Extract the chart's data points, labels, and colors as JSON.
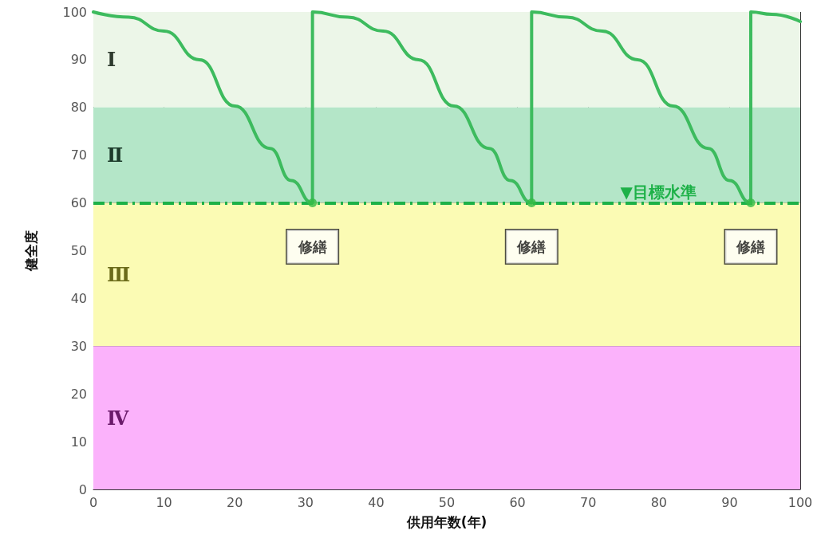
{
  "chart_data": {
    "type": "line",
    "xlabel": "供用年数(年)",
    "ylabel": "健全度",
    "xlim": [
      0,
      100
    ],
    "xticks": [
      0,
      10,
      20,
      30,
      40,
      50,
      60,
      70,
      80,
      90,
      100
    ],
    "ylim": [
      0,
      100
    ],
    "yticks": [
      0,
      10,
      20,
      30,
      40,
      50,
      60,
      70,
      80,
      90,
      100
    ],
    "grid": true,
    "marker": "none",
    "line_style": "solid",
    "series": [
      {
        "color": "#3dbb5e",
        "x": [
          0,
          5,
          10,
          15,
          20,
          25,
          28,
          31,
          31,
          36,
          41,
          46,
          51,
          56,
          59,
          62,
          62,
          67,
          72,
          77,
          82,
          87,
          90,
          93,
          93,
          96,
          100
        ],
        "values": [
          100,
          98.9,
          96,
          90,
          80.3,
          71.4,
          64.7,
          60,
          100,
          98.9,
          96,
          90,
          80.3,
          71.4,
          64.7,
          60,
          100,
          98.9,
          96,
          90,
          80.3,
          71.4,
          64.7,
          60,
          100,
          99.5,
          98
        ]
      },
      {
        "type": "scatter",
        "color": "#33bb44",
        "marker": "circle",
        "x": [
          31,
          62,
          93
        ],
        "values": [
          60,
          60,
          60
        ]
      }
    ],
    "bands": [
      {
        "axis": "y",
        "from": 80,
        "to": 100,
        "label": "Ⅰ",
        "color": "#ecf6e8"
      },
      {
        "axis": "y",
        "from": 60,
        "to": 80,
        "label": "Ⅱ",
        "color": "#b4e6c8"
      },
      {
        "axis": "y",
        "from": 30,
        "to": 60,
        "label": "Ⅲ",
        "color": "#fbfbb4"
      },
      {
        "axis": "y",
        "from": 0,
        "to": 30,
        "label": "Ⅳ",
        "color": "#fbb2fb"
      }
    ],
    "ref_lines": [
      {
        "axis": "y",
        "value": 60,
        "label": "▼目標水準",
        "color": "#1db148",
        "line_style": "dashed"
      }
    ],
    "annotations": [
      "修繕",
      "修繕",
      "修繕"
    ]
  }
}
